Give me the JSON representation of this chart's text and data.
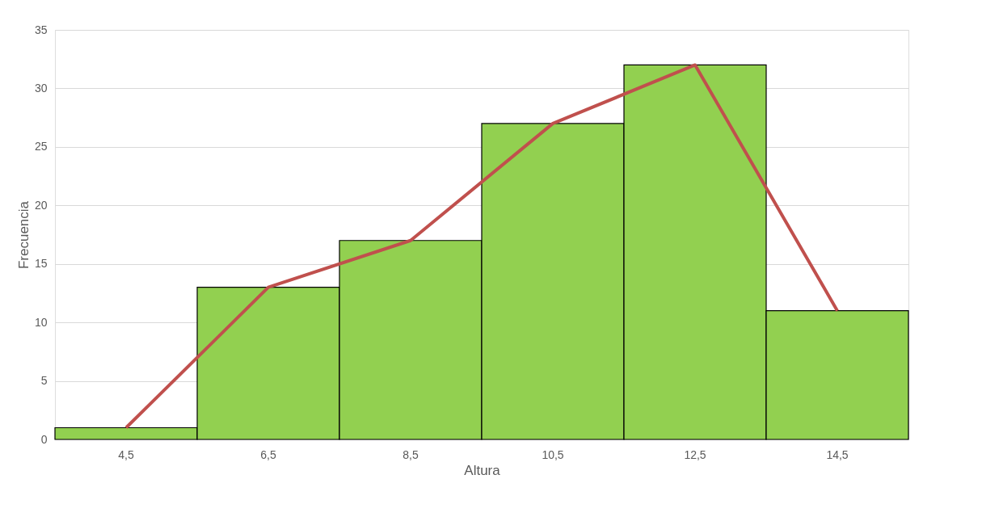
{
  "chart_data": {
    "type": "bar",
    "xlabel": "Altura",
    "ylabel": "Frecuencia",
    "categories": [
      "4,5",
      "6,5",
      "8,5",
      "10,5",
      "12,5",
      "14,5"
    ],
    "series": [
      {
        "color": "#92d050",
        "values": [
          1,
          13,
          17,
          27,
          32,
          11
        ]
      },
      {
        "type": "line",
        "color": "#c0504d",
        "values": [
          1,
          13,
          17,
          27,
          32,
          11
        ]
      }
    ],
    "ylim": [
      0,
      35
    ],
    "yticks": [
      0,
      5,
      10,
      15,
      20,
      25,
      30,
      35
    ],
    "grid": "y",
    "marker": "none"
  }
}
